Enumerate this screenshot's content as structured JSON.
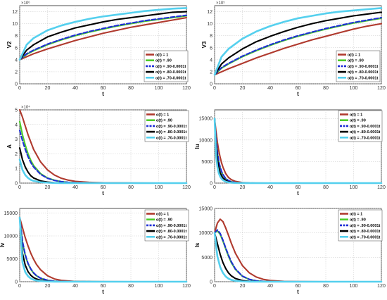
{
  "chart_data": [
    {
      "type": "line",
      "xlabel": "t",
      "ylabel": "V2",
      "exponent": "×10⁶",
      "xlim": [
        0,
        120
      ],
      "ylim": [
        0,
        13
      ],
      "xticks": [
        "0",
        "20",
        "40",
        "60",
        "80",
        "100",
        "120"
      ],
      "yticks": [
        "0",
        "2",
        "4",
        "6",
        "8",
        "10",
        "12"
      ],
      "grid": true,
      "legend_position": "right",
      "x": [
        0,
        5,
        10,
        20,
        30,
        40,
        50,
        60,
        70,
        80,
        90,
        100,
        110,
        120
      ],
      "series": [
        {
          "name": "α(t) = 1",
          "color": "#b03a2e",
          "values": [
            4,
            4.5,
            5,
            5.8,
            6.5,
            7.2,
            7.8,
            8.4,
            8.9,
            9.4,
            9.8,
            10.2,
            10.6,
            11
          ]
        },
        {
          "name": "α(t) = .90",
          "color": "#4ccc2a",
          "values": [
            4,
            4.9,
            5.5,
            6.5,
            7.3,
            8,
            8.6,
            9.1,
            9.6,
            10,
            10.4,
            10.7,
            11,
            11.3
          ]
        },
        {
          "name": "α(t) = .90-0.0001t",
          "color": "#1f2fd6",
          "values": [
            4,
            5,
            5.6,
            6.6,
            7.4,
            8.1,
            8.7,
            9.2,
            9.7,
            10.1,
            10.5,
            10.8,
            11.1,
            11.4
          ]
        },
        {
          "name": "α(t) = .80-0.0001t",
          "color": "#000000",
          "values": [
            4,
            5.6,
            6.5,
            7.8,
            8.6,
            9.3,
            9.8,
            10.3,
            10.7,
            11,
            11.3,
            11.6,
            11.9,
            12
          ]
        },
        {
          "name": "α(t) = .70-0.0001t",
          "color": "#55d0ee",
          "values": [
            4,
            6.5,
            7.6,
            8.9,
            9.7,
            10.3,
            10.8,
            11.2,
            11.5,
            11.8,
            12.1,
            12.3,
            12.5,
            12.6
          ]
        }
      ]
    },
    {
      "type": "line",
      "xlabel": "t",
      "ylabel": "V3",
      "exponent": "×10⁵",
      "xlim": [
        0,
        120
      ],
      "ylim": [
        0,
        13
      ],
      "xticks": [
        "0",
        "20",
        "40",
        "60",
        "80",
        "100",
        "120"
      ],
      "yticks": [
        "0",
        "2",
        "4",
        "6",
        "8",
        "10",
        "12"
      ],
      "grid": true,
      "legend_position": "right",
      "x": [
        0,
        5,
        10,
        20,
        30,
        40,
        50,
        60,
        70,
        80,
        90,
        100,
        110,
        120
      ],
      "series": [
        {
          "name": "α(t) = 1",
          "color": "#b03a2e",
          "values": [
            1.5,
            2,
            2.5,
            3.4,
            4.3,
            5.1,
            5.9,
            6.6,
            7.3,
            7.9,
            8.5,
            9.1,
            9.6,
            10
          ]
        },
        {
          "name": "α(t) = .90",
          "color": "#4ccc2a",
          "values": [
            1.5,
            2.6,
            3.3,
            4.5,
            5.5,
            6.4,
            7.2,
            7.9,
            8.5,
            9.1,
            9.6,
            10.1,
            10.5,
            10.9
          ]
        },
        {
          "name": "α(t) = .90-0.0001t",
          "color": "#1f2fd6",
          "values": [
            1.5,
            2.7,
            3.4,
            4.6,
            5.6,
            6.5,
            7.3,
            8,
            8.6,
            9.2,
            9.7,
            10.2,
            10.6,
            11
          ]
        },
        {
          "name": "α(t) = .80-0.0001t",
          "color": "#000000",
          "values": [
            1.5,
            3.3,
            4.3,
            5.8,
            7,
            7.9,
            8.7,
            9.4,
            10,
            10.5,
            10.9,
            11.3,
            11.6,
            11.9
          ]
        },
        {
          "name": "α(t) = .70-0.0001t",
          "color": "#55d0ee",
          "values": [
            1.5,
            4.5,
            5.8,
            7.5,
            8.7,
            9.6,
            10.3,
            10.9,
            11.3,
            11.7,
            12,
            12.2,
            12.4,
            12.6
          ]
        }
      ]
    },
    {
      "type": "line",
      "xlabel": "t",
      "ylabel": "A",
      "exponent": "×10⁴",
      "xlim": [
        0,
        120
      ],
      "ylim": [
        0,
        5
      ],
      "xticks": [
        "0",
        "20",
        "40",
        "60",
        "80",
        "100",
        "120"
      ],
      "yticks": [
        "0",
        "1",
        "2",
        "3",
        "4",
        "5"
      ],
      "grid": true,
      "legend_position": "right",
      "x": [
        0,
        2,
        4,
        6,
        8,
        10,
        15,
        20,
        25,
        30,
        35,
        40,
        50,
        60,
        80,
        100,
        120
      ],
      "series": [
        {
          "name": "α(t) = 1",
          "color": "#b03a2e",
          "values": [
            5,
            4.5,
            3.9,
            3.3,
            2.8,
            2.3,
            1.45,
            0.9,
            0.55,
            0.33,
            0.2,
            0.12,
            0.05,
            0.02,
            0.01,
            0,
            0
          ]
        },
        {
          "name": "α(t) = .90",
          "color": "#4ccc2a",
          "values": [
            4.2,
            3.3,
            2.6,
            2,
            1.55,
            1.2,
            0.65,
            0.35,
            0.2,
            0.1,
            0.05,
            0.03,
            0.01,
            0,
            0,
            0,
            0
          ]
        },
        {
          "name": "α(t) = .90-0.0001t",
          "color": "#1f2fd6",
          "values": [
            3.6,
            2.9,
            2.3,
            1.8,
            1.4,
            1.1,
            0.6,
            0.33,
            0.18,
            0.1,
            0.05,
            0.03,
            0.01,
            0,
            0,
            0,
            0
          ]
        },
        {
          "name": "α(t) = .80-0.0001t",
          "color": "#000000",
          "values": [
            2.4,
            1.6,
            1.1,
            0.75,
            0.5,
            0.35,
            0.15,
            0.07,
            0.03,
            0.01,
            0,
            0,
            0,
            0,
            0,
            0,
            0
          ]
        },
        {
          "name": "α(t) = .70-0.0001t",
          "color": "#55d0ee",
          "values": [
            1.6,
            0.9,
            0.55,
            0.35,
            0.22,
            0.15,
            0.06,
            0.03,
            0.01,
            0,
            0,
            0,
            0,
            0,
            0,
            0,
            0
          ]
        }
      ]
    },
    {
      "type": "line",
      "xlabel": "t",
      "ylabel": "Iu",
      "exponent": "",
      "xlim": [
        0,
        120
      ],
      "ylim": [
        0,
        17000
      ],
      "xticks": [
        "0",
        "20",
        "40",
        "60",
        "80",
        "100",
        "120"
      ],
      "yticks": [
        "0",
        "5000",
        "10000",
        "15000"
      ],
      "grid": true,
      "legend_position": "right",
      "x": [
        0,
        1,
        2,
        3,
        4,
        5,
        6,
        8,
        10,
        12,
        15,
        20,
        25,
        30,
        40,
        60,
        80,
        100,
        120
      ],
      "series": [
        {
          "name": "α(t) = 1",
          "color": "#b03a2e",
          "values": [
            15000,
            12000,
            9500,
            7500,
            6000,
            4700,
            3700,
            2200,
            1300,
            800,
            400,
            120,
            40,
            10,
            0,
            0,
            0,
            0,
            0
          ]
        },
        {
          "name": "α(t) = .90",
          "color": "#4ccc2a",
          "values": [
            15000,
            10000,
            7000,
            5000,
            3600,
            2600,
            1900,
            1000,
            550,
            300,
            130,
            30,
            10,
            0,
            0,
            0,
            0,
            0,
            0
          ]
        },
        {
          "name": "α(t) = .90-0.0001t",
          "color": "#1f2fd6",
          "values": [
            15000,
            10200,
            7200,
            5100,
            3700,
            2700,
            2000,
            1050,
            580,
            320,
            140,
            35,
            10,
            0,
            0,
            0,
            0,
            0,
            0
          ]
        },
        {
          "name": "α(t) = .80-0.0001t",
          "color": "#000000",
          "values": [
            15000,
            8500,
            5500,
            3600,
            2400,
            1700,
            1200,
            600,
            300,
            150,
            60,
            15,
            0,
            0,
            0,
            0,
            0,
            0,
            0
          ]
        },
        {
          "name": "α(t) = .70-0.0001t",
          "color": "#55d0ee",
          "values": [
            15000,
            6500,
            3800,
            2300,
            1500,
            1000,
            700,
            330,
            160,
            80,
            30,
            5,
            0,
            0,
            0,
            0,
            0,
            0,
            0
          ]
        }
      ]
    },
    {
      "type": "line",
      "xlabel": "t",
      "ylabel": "Iv",
      "exponent": "",
      "xlim": [
        0,
        120
      ],
      "ylim": [
        0,
        16000
      ],
      "xticks": [
        "0",
        "20",
        "40",
        "60",
        "80",
        "100",
        "120"
      ],
      "yticks": [
        "0",
        "5000",
        "10000",
        "15000"
      ],
      "grid": true,
      "legend_position": "right",
      "x": [
        0,
        2,
        4,
        6,
        8,
        10,
        12,
        15,
        20,
        25,
        30,
        40,
        60,
        80,
        100,
        120
      ],
      "series": [
        {
          "name": "α(t) = 1",
          "color": "#b03a2e",
          "values": [
            14000,
            11800,
            9600,
            7800,
            6200,
            4900,
            3800,
            2600,
            1300,
            600,
            280,
            60,
            5,
            0,
            0,
            0
          ]
        },
        {
          "name": "α(t) = .90",
          "color": "#4ccc2a",
          "values": [
            14000,
            8500,
            5700,
            3900,
            2700,
            1850,
            1300,
            750,
            300,
            110,
            40,
            5,
            0,
            0,
            0,
            0
          ]
        },
        {
          "name": "α(t) = .90-0.0001t",
          "color": "#1f2fd6",
          "values": [
            14000,
            8800,
            5900,
            4000,
            2800,
            1950,
            1350,
            780,
            310,
            120,
            45,
            5,
            0,
            0,
            0,
            0
          ]
        },
        {
          "name": "α(t) = .80-0.0001t",
          "color": "#000000",
          "values": [
            14000,
            6200,
            3600,
            2200,
            1400,
            900,
            600,
            320,
            110,
            40,
            15,
            0,
            0,
            0,
            0,
            0
          ]
        },
        {
          "name": "α(t) = .70-0.0001t",
          "color": "#55d0ee",
          "values": [
            14000,
            4200,
            2100,
            1200,
            700,
            420,
            260,
            130,
            40,
            10,
            0,
            0,
            0,
            0,
            0,
            0
          ]
        }
      ]
    },
    {
      "type": "line",
      "xlabel": "t",
      "ylabel": "Is",
      "exponent": "",
      "xlim": [
        0,
        120
      ],
      "ylim": [
        0,
        15000
      ],
      "xticks": [
        "0",
        "20",
        "40",
        "60",
        "80",
        "100",
        "120"
      ],
      "yticks": [
        "0",
        "5000",
        "10000",
        "15000"
      ],
      "grid": true,
      "legend_position": "right",
      "x": [
        0,
        2,
        4,
        6,
        8,
        10,
        12,
        15,
        20,
        25,
        30,
        35,
        40,
        50,
        60,
        80,
        100,
        120
      ],
      "series": [
        {
          "name": "α(t) = 1",
          "color": "#b03a2e",
          "values": [
            10000,
            12000,
            12800,
            12300,
            11000,
            9500,
            7900,
            5800,
            3300,
            1800,
            950,
            480,
            250,
            70,
            20,
            0,
            0,
            0
          ]
        },
        {
          "name": "α(t) = .90",
          "color": "#4ccc2a",
          "values": [
            10000,
            10400,
            9700,
            8300,
            6700,
            5200,
            3900,
            2500,
            1100,
            450,
            170,
            60,
            20,
            0,
            0,
            0,
            0,
            0
          ]
        },
        {
          "name": "α(t) = .90-0.0001t",
          "color": "#1f2fd6",
          "values": [
            10000,
            10600,
            9900,
            8500,
            6900,
            5400,
            4100,
            2600,
            1150,
            480,
            180,
            65,
            25,
            0,
            0,
            0,
            0,
            0
          ]
        },
        {
          "name": "α(t) = .80-0.0001t",
          "color": "#000000",
          "values": [
            10000,
            7800,
            5600,
            3900,
            2700,
            1800,
            1200,
            650,
            230,
            80,
            25,
            0,
            0,
            0,
            0,
            0,
            0,
            0
          ]
        },
        {
          "name": "α(t) = .70-0.0001t",
          "color": "#55d0ee",
          "values": [
            10000,
            5200,
            3000,
            1800,
            1050,
            620,
            370,
            180,
            55,
            15,
            0,
            0,
            0,
            0,
            0,
            0,
            0,
            0
          ]
        }
      ]
    }
  ]
}
